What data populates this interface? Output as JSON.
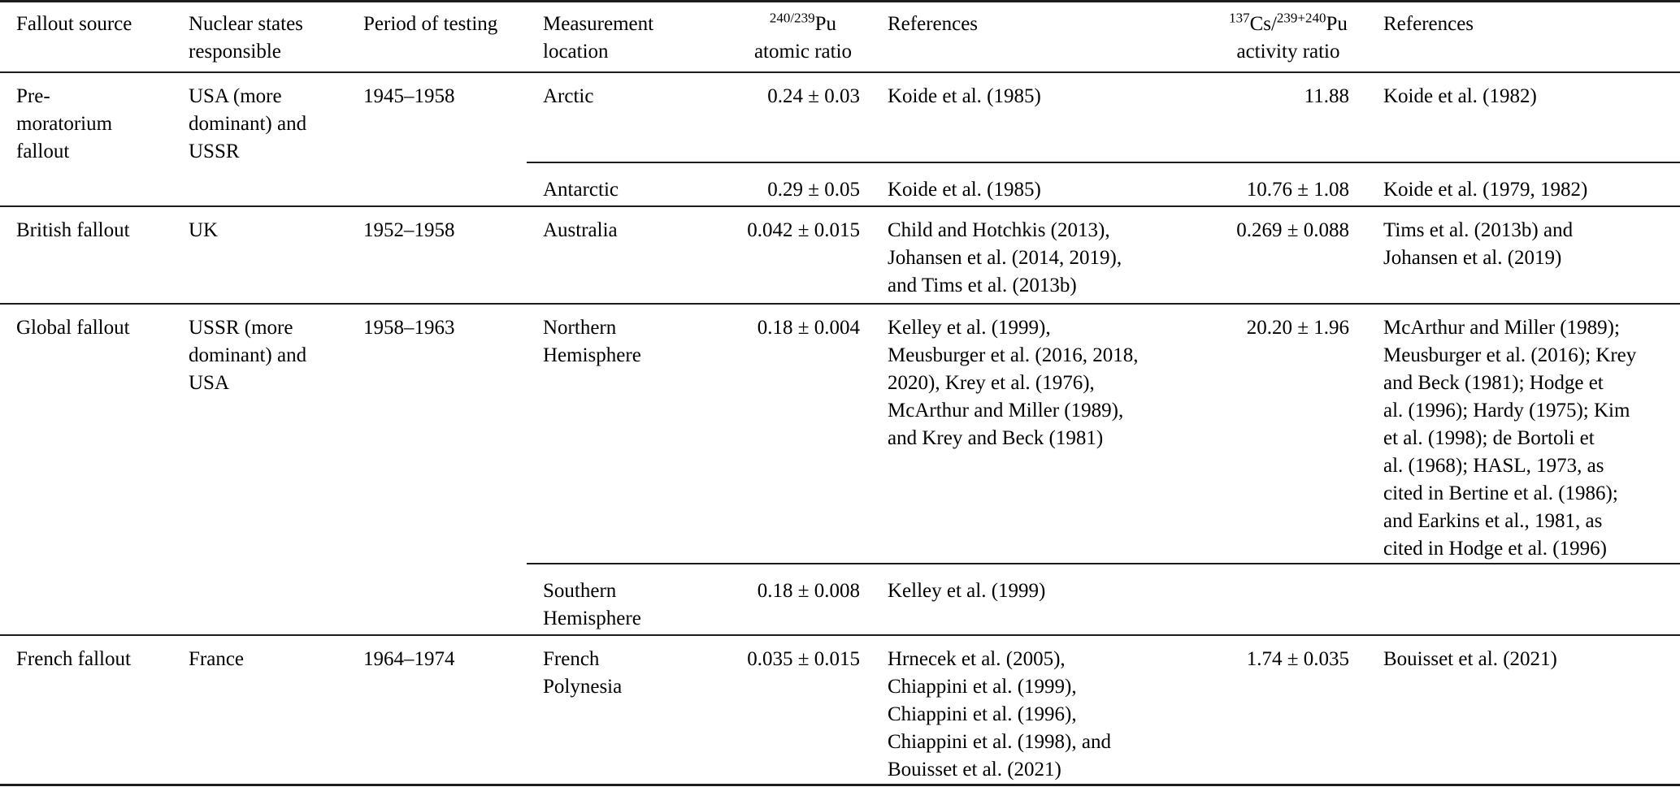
{
  "colors": {
    "text": "#000000",
    "rule": "#1c1c1c",
    "background": "#ffffff"
  },
  "header": {
    "fallout_source": "Fallout source",
    "nuclear_states": "Nuclear states\nresponsible",
    "period": "Period of testing",
    "location": "Measurement\nlocation",
    "pu_ratio": {
      "sup": "240/239",
      "base": "Pu",
      "line2": "atomic ratio"
    },
    "references_pu": "References",
    "cs_pu_ratio": {
      "sup1": "137",
      "base1": "Cs/",
      "sup2": "239+240",
      "base2": "Pu",
      "line2": "activity ratio"
    },
    "references_cs": "References"
  },
  "sections": [
    {
      "source": "Pre-\nmoratorium\nfallout",
      "states": "USA (more\ndominant) and\nUSSR",
      "period": "1945–1958",
      "rows": [
        {
          "location": "Arctic",
          "atomic_ratio": "0.24 ± 0.03",
          "references_pu": "Koide et al. (1985)",
          "activity_ratio": "11.88",
          "references_cs": "Koide et al. (1982)"
        },
        {
          "location": "Antarctic",
          "atomic_ratio": "0.29 ± 0.05",
          "references_pu": "Koide et al. (1985)",
          "activity_ratio": "10.76 ± 1.08",
          "references_cs": "Koide et al. (1979, 1982)"
        }
      ]
    },
    {
      "source": "British fallout",
      "states": "UK",
      "period": "1952–1958",
      "rows": [
        {
          "location": "Australia",
          "atomic_ratio": "0.042 ± 0.015",
          "references_pu": "Child and Hotchkis (2013),\nJohansen et al. (2014, 2019),\nand Tims et al. (2013b)",
          "activity_ratio": "0.269 ± 0.088",
          "references_cs": "Tims et al. (2013b) and\nJohansen et al. (2019)"
        }
      ]
    },
    {
      "source": "Global fallout",
      "states": "USSR (more\ndominant) and\nUSA",
      "period": "1958–1963",
      "rows": [
        {
          "location": "Northern\nHemisphere",
          "atomic_ratio": "0.18 ± 0.004",
          "references_pu": "Kelley et al. (1999),\nMeusburger et al. (2016, 2018,\n2020), Krey et al. (1976),\nMcArthur and Miller (1989),\nand Krey and Beck (1981)",
          "activity_ratio": "20.20 ± 1.96",
          "references_cs": "McArthur and Miller (1989);\nMeusburger et al. (2016); Krey\nand Beck (1981); Hodge et\nal. (1996); Hardy (1975); Kim\net al. (1998); de Bortoli et\nal. (1968); HASL, 1973, as\ncited in Bertine et al. (1986);\nand Earkins et al., 1981, as\ncited in Hodge et al. (1996)"
        },
        {
          "location": "Southern\nHemisphere",
          "atomic_ratio": "0.18 ± 0.008",
          "references_pu": "Kelley et al. (1999)",
          "activity_ratio": "",
          "references_cs": ""
        }
      ]
    },
    {
      "source": "French fallout",
      "states": "France",
      "period": "1964–1974",
      "rows": [
        {
          "location": "French\nPolynesia",
          "atomic_ratio": "0.035 ± 0.015",
          "references_pu": "Hrnecek et al. (2005),\nChiappini et al. (1999),\nChiappini et al. (1996),\nChiappini et al. (1998), and\nBouisset et al. (2021)",
          "activity_ratio": "1.74 ± 0.035",
          "references_cs": "Bouisset et al. (2021)"
        }
      ]
    }
  ]
}
